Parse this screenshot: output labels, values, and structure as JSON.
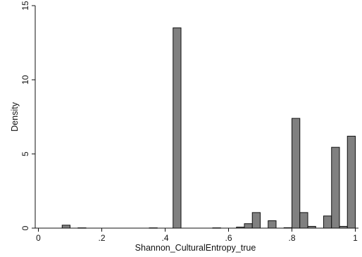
{
  "chart_data": {
    "type": "bar",
    "xlabel": "Shannon_CulturalEntropy_true",
    "ylabel": "Density",
    "xlim": [
      -0.01,
      1.01
    ],
    "ylim": [
      0,
      15
    ],
    "x_ticks": [
      {
        "value": 0,
        "label": "0"
      },
      {
        "value": 0.2,
        "label": ".2"
      },
      {
        "value": 0.4,
        "label": ".4"
      },
      {
        "value": 0.6,
        "label": ".6"
      },
      {
        "value": 0.8,
        "label": ".8"
      },
      {
        "value": 1,
        "label": "1"
      }
    ],
    "y_ticks": [
      {
        "value": 0,
        "label": "0"
      },
      {
        "value": 5,
        "label": "5"
      },
      {
        "value": 10,
        "label": "10"
      },
      {
        "value": 15,
        "label": "15"
      }
    ],
    "bin_width": 0.025,
    "bars": [
      {
        "x": 0.075,
        "density": 0.2
      },
      {
        "x": 0.125,
        "density": 0.02
      },
      {
        "x": 0.35,
        "density": 0.02
      },
      {
        "x": 0.425,
        "density": 13.5
      },
      {
        "x": 0.55,
        "density": 0.02
      },
      {
        "x": 0.625,
        "density": 0.07
      },
      {
        "x": 0.65,
        "density": 0.3
      },
      {
        "x": 0.675,
        "density": 1.05
      },
      {
        "x": 0.725,
        "density": 0.5
      },
      {
        "x": 0.775,
        "density": 0.03
      },
      {
        "x": 0.8,
        "density": 7.4
      },
      {
        "x": 0.825,
        "density": 1.05
      },
      {
        "x": 0.85,
        "density": 0.12
      },
      {
        "x": 0.9,
        "density": 0.82
      },
      {
        "x": 0.925,
        "density": 5.45
      },
      {
        "x": 0.95,
        "density": 0.12
      },
      {
        "x": 0.975,
        "density": 6.2
      }
    ],
    "colors": {
      "bar_fill": "#808080",
      "bar_stroke": "#111111",
      "axis": "#111111",
      "background": "#ffffff"
    },
    "grid": false,
    "legend": "none"
  }
}
